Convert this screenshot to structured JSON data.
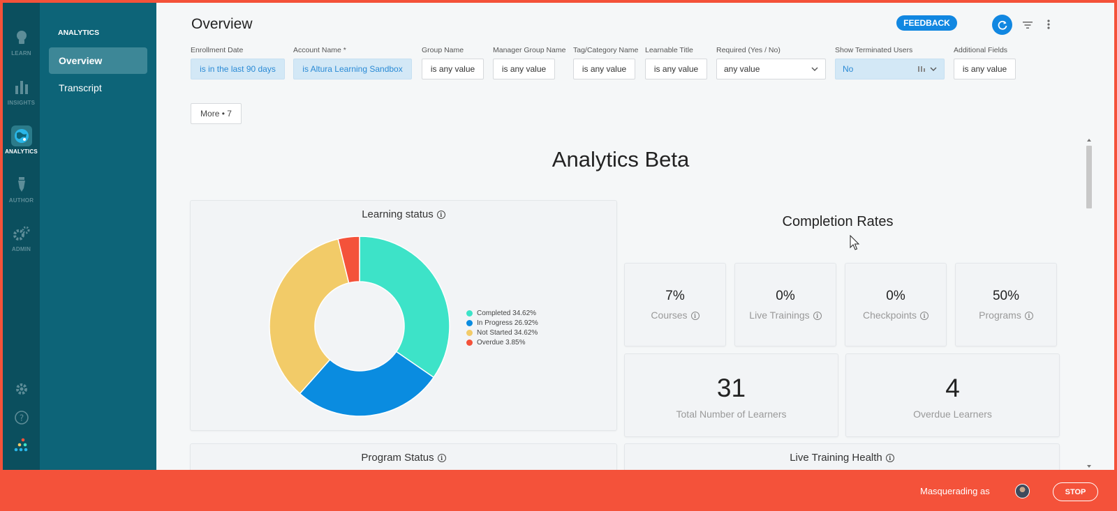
{
  "rail": {
    "items": [
      {
        "label": "LEARN",
        "icon": "lightbulb-icon"
      },
      {
        "label": "INSIGHTS",
        "icon": "bar-chart-icon"
      },
      {
        "label": "ANALYTICS",
        "icon": "globe-icon"
      },
      {
        "label": "AUTHOR",
        "icon": "pen-icon"
      },
      {
        "label": "ADMIN",
        "icon": "gears-icon"
      }
    ],
    "bottom_icons": [
      "settings-icon",
      "help-icon",
      "apps-icon"
    ]
  },
  "nav": {
    "title": "ANALYTICS",
    "items": [
      {
        "label": "Overview",
        "active": true
      },
      {
        "label": "Transcript",
        "active": false
      }
    ]
  },
  "header": {
    "title": "Overview",
    "feedback_label": "FEEDBACK"
  },
  "filters": [
    {
      "label": "Enrollment Date",
      "value": "is in the last 90 days"
    },
    {
      "label": "Account Name *",
      "value": "is Altura Learning Sandbox"
    },
    {
      "label": "Group Name",
      "value": "is any value"
    },
    {
      "label": "Manager Group Name",
      "value": "is any value"
    },
    {
      "label": "Tag/Category Name",
      "value": "is any value"
    },
    {
      "label": "Learnable Title",
      "value": "is any value"
    },
    {
      "label": "Required (Yes / No)",
      "value": "any value"
    },
    {
      "label": "Show Terminated Users",
      "value": "No"
    },
    {
      "label": "Additional Fields",
      "value": "is any value"
    }
  ],
  "more_button": "More • 7",
  "section_title": "Analytics Beta",
  "learning_status": {
    "title": "Learning status",
    "legend": [
      "Completed 34.62%",
      "In Progress 26.92%",
      "Not Started 34.62%",
      "Overdue 3.85%"
    ]
  },
  "chart_data": {
    "type": "pie",
    "title": "Learning status",
    "categories": [
      "Completed",
      "In Progress",
      "Not Started",
      "Overdue"
    ],
    "values": [
      34.62,
      26.92,
      34.62,
      3.85
    ],
    "colors": [
      "#3de3c8",
      "#0a8ce0",
      "#f2cb68",
      "#f4523a"
    ],
    "donut": true,
    "legend": "right"
  },
  "completion": {
    "title": "Completion Rates",
    "stats": [
      {
        "value": "7%",
        "label": "Courses"
      },
      {
        "value": "0%",
        "label": "Live Trainings"
      },
      {
        "value": "0%",
        "label": "Checkpoints"
      },
      {
        "value": "50%",
        "label": "Programs"
      }
    ],
    "totals": [
      {
        "value": "31",
        "label": "Total Number of Learners"
      },
      {
        "value": "4",
        "label": "Overdue Learners"
      }
    ]
  },
  "lower_cards": [
    {
      "title": "Program Status"
    },
    {
      "title": "Live Training Health"
    }
  ],
  "masquerade": {
    "label": "Masquerading as",
    "stop_label": "STOP"
  },
  "colors": {
    "accent": "#1187e1",
    "rail": "#0b4f5e",
    "nav": "#0d6478",
    "banner": "#f4523a"
  }
}
